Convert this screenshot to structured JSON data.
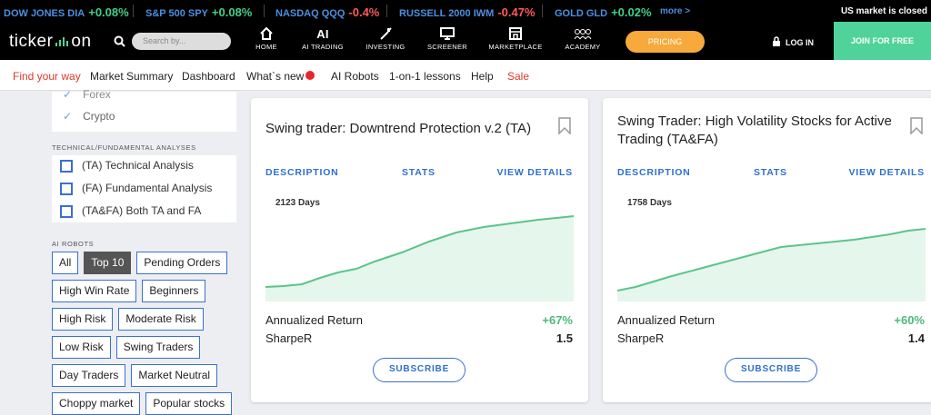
{
  "ticker": {
    "items": [
      {
        "name": "DOW JONES DIA",
        "change": "+0.08%"
      },
      {
        "name": "S&P 500 SPY",
        "change": "+0.08%"
      },
      {
        "name": "NASDAQ QQQ",
        "change": "-0.4%"
      },
      {
        "name": "RUSSELL 2000 IWM",
        "change": "-0.47%"
      },
      {
        "name": "GOLD GLD",
        "change": "+0.02%"
      }
    ],
    "more": "more >",
    "status": "US market is closed"
  },
  "nav": {
    "logo": {
      "left": "ticker",
      "right": "on"
    },
    "search": "Search by...",
    "items": [
      "HOME",
      "AI TRADING",
      "INVESTING",
      "SCREENER",
      "MARKETPLACE",
      "ACADEMY"
    ],
    "ai_icon": "AI",
    "pricing": "PRICING",
    "login": "LOG IN",
    "join": "JOIN FOR FREE"
  },
  "subnav": [
    "Find your way",
    "Market Summary",
    "Dashboard",
    "What`s new",
    "AI Robots",
    "1-on-1 lessons",
    "Help",
    "Sale"
  ],
  "sidebar": {
    "markets": [
      "Forex",
      "Crypto"
    ],
    "analyses_title": "TECHNICAL/FUNDAMENTAL ANALYSES",
    "analyses": [
      "(TA) Technical Analysis",
      "(FA) Fundamental Analysis",
      "(TA&FA) Both TA and FA"
    ],
    "robots_title": "AI ROBOTS",
    "robot_tags": [
      "All",
      "Top 10",
      "Pending Orders",
      "High Win Rate",
      "Beginners",
      "High Risk",
      "Moderate Risk",
      "Low Risk",
      "Swing Traders",
      "Day Traders",
      "Market Neutral",
      "Choppy market",
      "Popular stocks"
    ]
  },
  "cards": [
    {
      "title": "Swing trader: Downtrend Protection v.2 (TA)",
      "tabs": [
        "DESCRIPTION",
        "STATS",
        "VIEW DETAILS"
      ],
      "days": "2123 Days",
      "metrics": [
        {
          "label": "Annualized Return",
          "value": "+67%"
        },
        {
          "label": "SharpeR",
          "value": "1.5"
        }
      ],
      "subscribe": "SUBSCRIBE"
    },
    {
      "title": "Swing Trader: High Volatility Stocks for Active Trading (TA&FA)",
      "tabs": [
        "DESCRIPTION",
        "STATS",
        "VIEW DETAILS"
      ],
      "days": "1758 Days",
      "metrics": [
        {
          "label": "Annualized Return",
          "value": "+60%"
        },
        {
          "label": "SharpeR",
          "value": "1.4"
        }
      ],
      "subscribe": "SUBSCRIBE"
    }
  ]
}
